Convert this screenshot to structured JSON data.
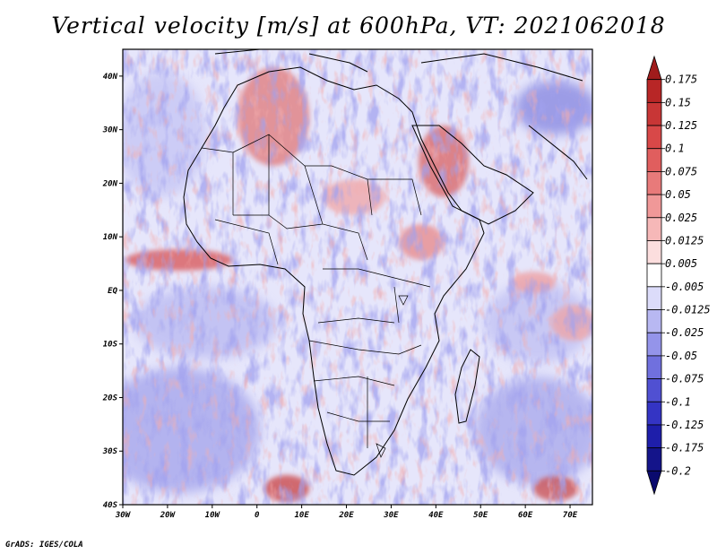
{
  "title": "Vertical velocity [m/s] at 600hPa, VT: 2021062018",
  "credit": "GrADS: IGES/COLA",
  "map": {
    "lon_range": [
      -30,
      75
    ],
    "lat_range": [
      -40,
      45
    ],
    "lon_ticks": [
      "30W",
      "20W",
      "10W",
      "0",
      "10E",
      "20E",
      "30E",
      "40E",
      "50E",
      "60E",
      "70E"
    ],
    "lat_ticks": [
      "40S",
      "30S",
      "20S",
      "10S",
      "EQ",
      "10N",
      "20N",
      "30N",
      "40N"
    ]
  },
  "colorbar": {
    "levels": [
      "0.175",
      "0.15",
      "0.125",
      "0.1",
      "0.075",
      "0.05",
      "0.025",
      "0.0125",
      "0.005",
      "-0.005",
      "-0.0125",
      "-0.025",
      "-0.05",
      "-0.075",
      "-0.1",
      "-0.125",
      "-0.175",
      "-0.2"
    ],
    "colors": [
      "#a01c1c",
      "#b82626",
      "#c83636",
      "#d84848",
      "#e05e5e",
      "#e87a7a",
      "#f09898",
      "#f6b8b8",
      "#fcdede",
      "#ffffff",
      "#dcdcfa",
      "#b8b8f2",
      "#9494ea",
      "#7070de",
      "#5050d2",
      "#3434c4",
      "#1e1eaa",
      "#14148a",
      "#0a0a6e"
    ]
  }
}
